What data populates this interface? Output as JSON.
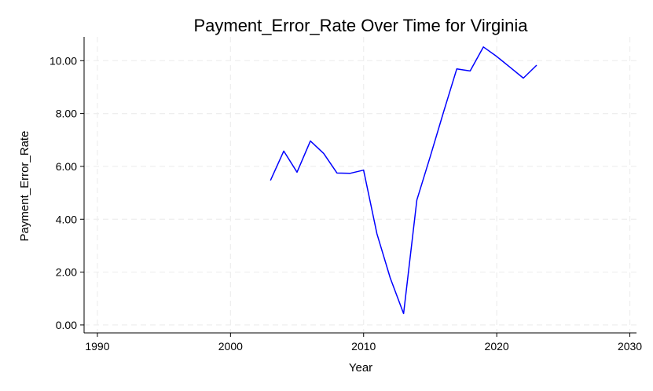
{
  "chart_data": {
    "type": "line",
    "title": "Payment_Error_Rate Over Time for Virginia",
    "xlabel": "Year",
    "ylabel": "Payment_Error_Rate",
    "xlim": [
      1989,
      2030.5
    ],
    "ylim": [
      -0.3,
      10.9
    ],
    "xticks": [
      1990,
      2000,
      2010,
      2020,
      2030
    ],
    "yticks": [
      0,
      2,
      4,
      6,
      8,
      10
    ],
    "ytick_labels": [
      "0.00",
      "2.00",
      "4.00",
      "6.00",
      "8.00",
      "10.00"
    ],
    "grid": true,
    "line_color": "#0000ff",
    "series": [
      {
        "x": [
          2003,
          2004,
          2005,
          2006,
          2007,
          2008,
          2009,
          2010,
          2011,
          2012,
          2013,
          2014,
          2015,
          2016,
          2017,
          2018,
          2019,
          2020,
          2021,
          2022,
          2023
        ],
        "values": [
          5.47,
          6.58,
          5.78,
          6.96,
          6.49,
          5.75,
          5.74,
          5.86,
          3.45,
          1.78,
          0.43,
          4.73,
          6.36,
          8.05,
          9.69,
          9.61,
          10.52,
          10.16,
          9.75,
          9.34,
          9.83
        ]
      }
    ]
  }
}
